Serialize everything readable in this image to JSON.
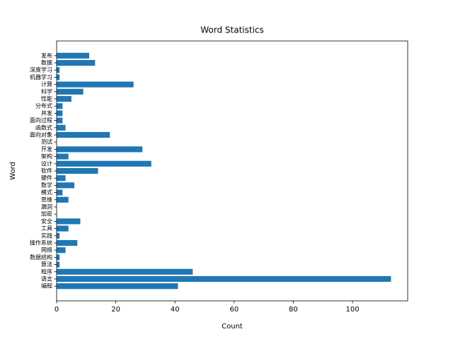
{
  "chart_data": {
    "type": "barh",
    "title": "Word Statistics",
    "xlabel": "Count",
    "ylabel": "Word",
    "categories": [
      "编程",
      "语言",
      "程序",
      "算法",
      "数据结构",
      "网络",
      "操作系统",
      "实践",
      "工具",
      "安全",
      "加密",
      "漏洞",
      "思维",
      "模式",
      "数学",
      "硬件",
      "软件",
      "设计",
      "架构",
      "开发",
      "测试",
      "面向对象",
      "函数式",
      "面向过程",
      "并发",
      "分布式",
      "性能",
      "科学",
      "计算",
      "机器学习",
      "深度学习",
      "数据",
      "发布"
    ],
    "values": [
      41,
      113,
      46,
      1,
      1,
      3,
      7,
      1,
      4,
      8,
      0,
      0,
      4,
      2,
      6,
      3,
      14,
      32,
      4,
      29,
      0,
      18,
      3,
      2,
      2,
      2,
      5,
      9,
      26,
      1,
      1,
      13,
      11
    ],
    "color": "#1f77b4",
    "xlim": [
      0,
      118.65
    ],
    "xticks": [
      0,
      20,
      40,
      60,
      80,
      100
    ]
  }
}
